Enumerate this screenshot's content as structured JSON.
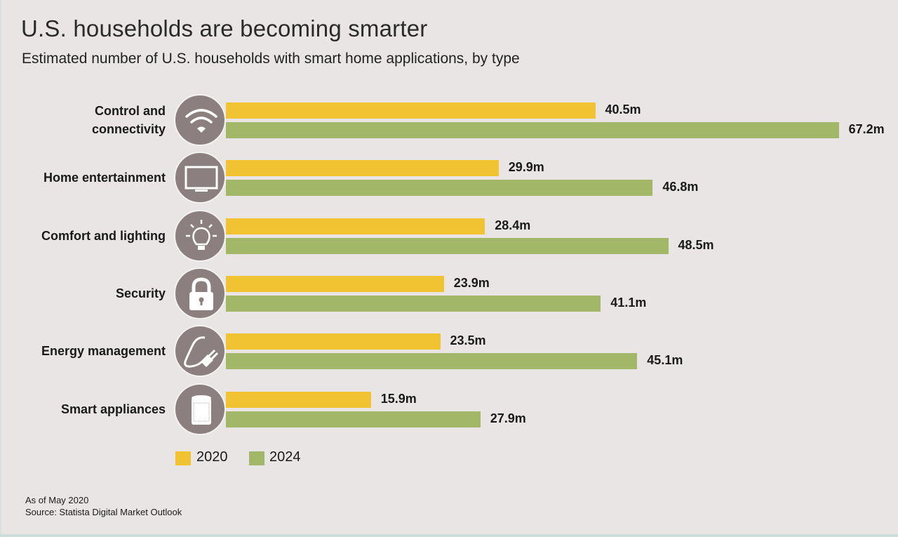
{
  "chart_data": {
    "type": "bar",
    "orientation": "horizontal",
    "title": "U.S. households are becoming smarter",
    "subtitle": "Estimated number of U.S. households with smart home applications, by type",
    "categories": [
      "Control and connectivity",
      "Home entertainment",
      "Comfort and lighting",
      "Security",
      "Energy management",
      "Smart appliances"
    ],
    "category_icons": [
      "wifi-icon",
      "tv-icon",
      "lightbulb-icon",
      "lock-icon",
      "plug-icon",
      "smart-speaker-icon"
    ],
    "series": [
      {
        "name": "2020",
        "color": "#f1c232",
        "values": [
          40.5,
          29.9,
          28.4,
          23.9,
          23.5,
          15.9
        ],
        "labels": [
          "40.5m",
          "29.9m",
          "28.4m",
          "23.9m",
          "23.5m",
          "15.9m"
        ]
      },
      {
        "name": "2024",
        "color": "#a2b868",
        "values": [
          67.2,
          46.8,
          48.5,
          41.1,
          45.1,
          27.9
        ],
        "labels": [
          "67.2m",
          "46.8m",
          "48.5m",
          "41.1m",
          "45.1m",
          "27.9m"
        ]
      }
    ],
    "unit": "m",
    "grid": false,
    "legend_position": "bottom-left",
    "notes": [
      "As of May 2020",
      "Source: Statista Digital Market Outlook"
    ]
  }
}
